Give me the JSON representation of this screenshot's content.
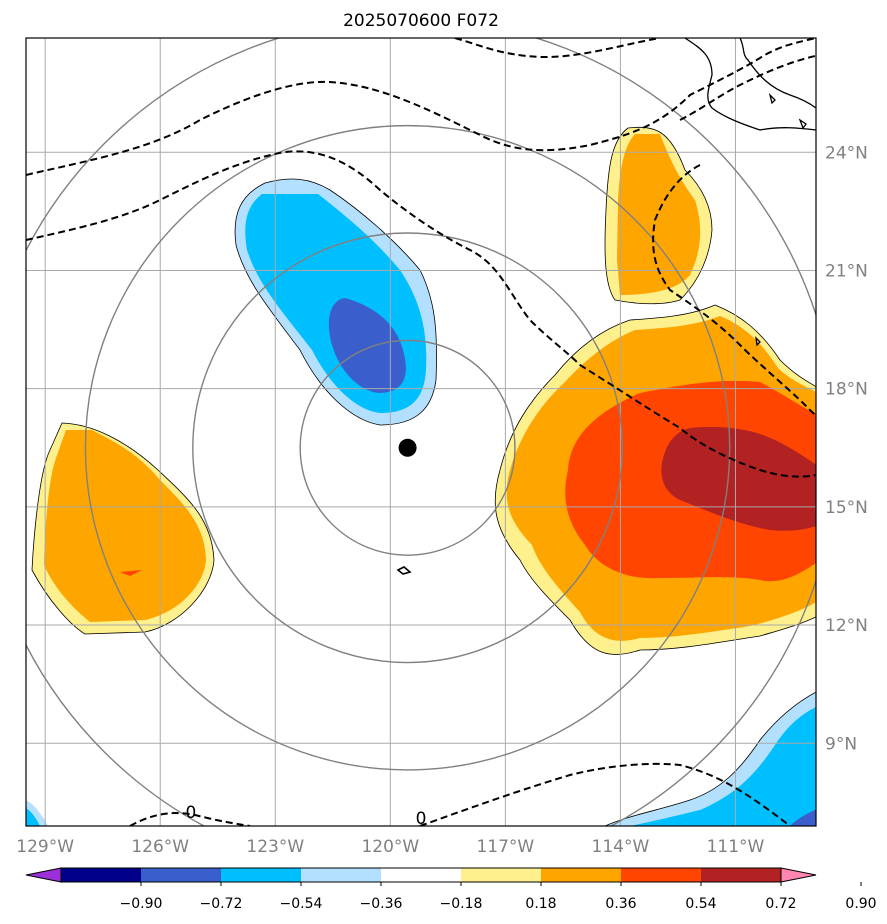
{
  "title": "2025070600 F072",
  "map": {
    "lon_range": [
      -129.5,
      -108.9
    ],
    "lat_range": [
      6.9,
      26.9
    ],
    "lon_ticks": [
      {
        "lon": -129,
        "label": "129°W"
      },
      {
        "lon": -126,
        "label": "126°W"
      },
      {
        "lon": -123,
        "label": "123°W"
      },
      {
        "lon": -120,
        "label": "120°W"
      },
      {
        "lon": -117,
        "label": "117°W"
      },
      {
        "lon": -114,
        "label": "114°W"
      },
      {
        "lon": -111,
        "label": "111°W"
      }
    ],
    "lat_ticks": [
      {
        "lat": 24,
        "label": "24°N"
      },
      {
        "lat": 21,
        "label": "21°N"
      },
      {
        "lat": 18,
        "label": "18°N"
      },
      {
        "lat": 15,
        "label": "15°N"
      },
      {
        "lat": 12,
        "label": "12°N"
      },
      {
        "lat": 9,
        "label": "9°N"
      }
    ],
    "grid": true,
    "storm_center": {
      "lon": -119.55,
      "lat": 16.5
    },
    "range_rings_deg": [
      2.8,
      5.6,
      8.4,
      11.2
    ],
    "contour_labels": [
      {
        "text": "0",
        "lon": -125.2,
        "lat": 7.1
      },
      {
        "text": "0",
        "lon": -119.2,
        "lat": 6.95
      }
    ],
    "coastline": "Baja California / western Mexico (top-right)"
  },
  "colorbar": {
    "extend": "both",
    "levels": [
      "−0.90",
      "−0.72",
      "−0.54",
      "−0.36",
      "−0.18",
      "0.18",
      "0.36",
      "0.54",
      "0.72",
      "0.90"
    ],
    "colors": [
      "#9b30d8",
      "#00008b",
      "#3a5fcd",
      "#00bfff",
      "#b4e0ff",
      "#ffffff",
      "#fff08e",
      "#ffa500",
      "#ff4500",
      "#b22222",
      "#ff85b3"
    ]
  }
}
